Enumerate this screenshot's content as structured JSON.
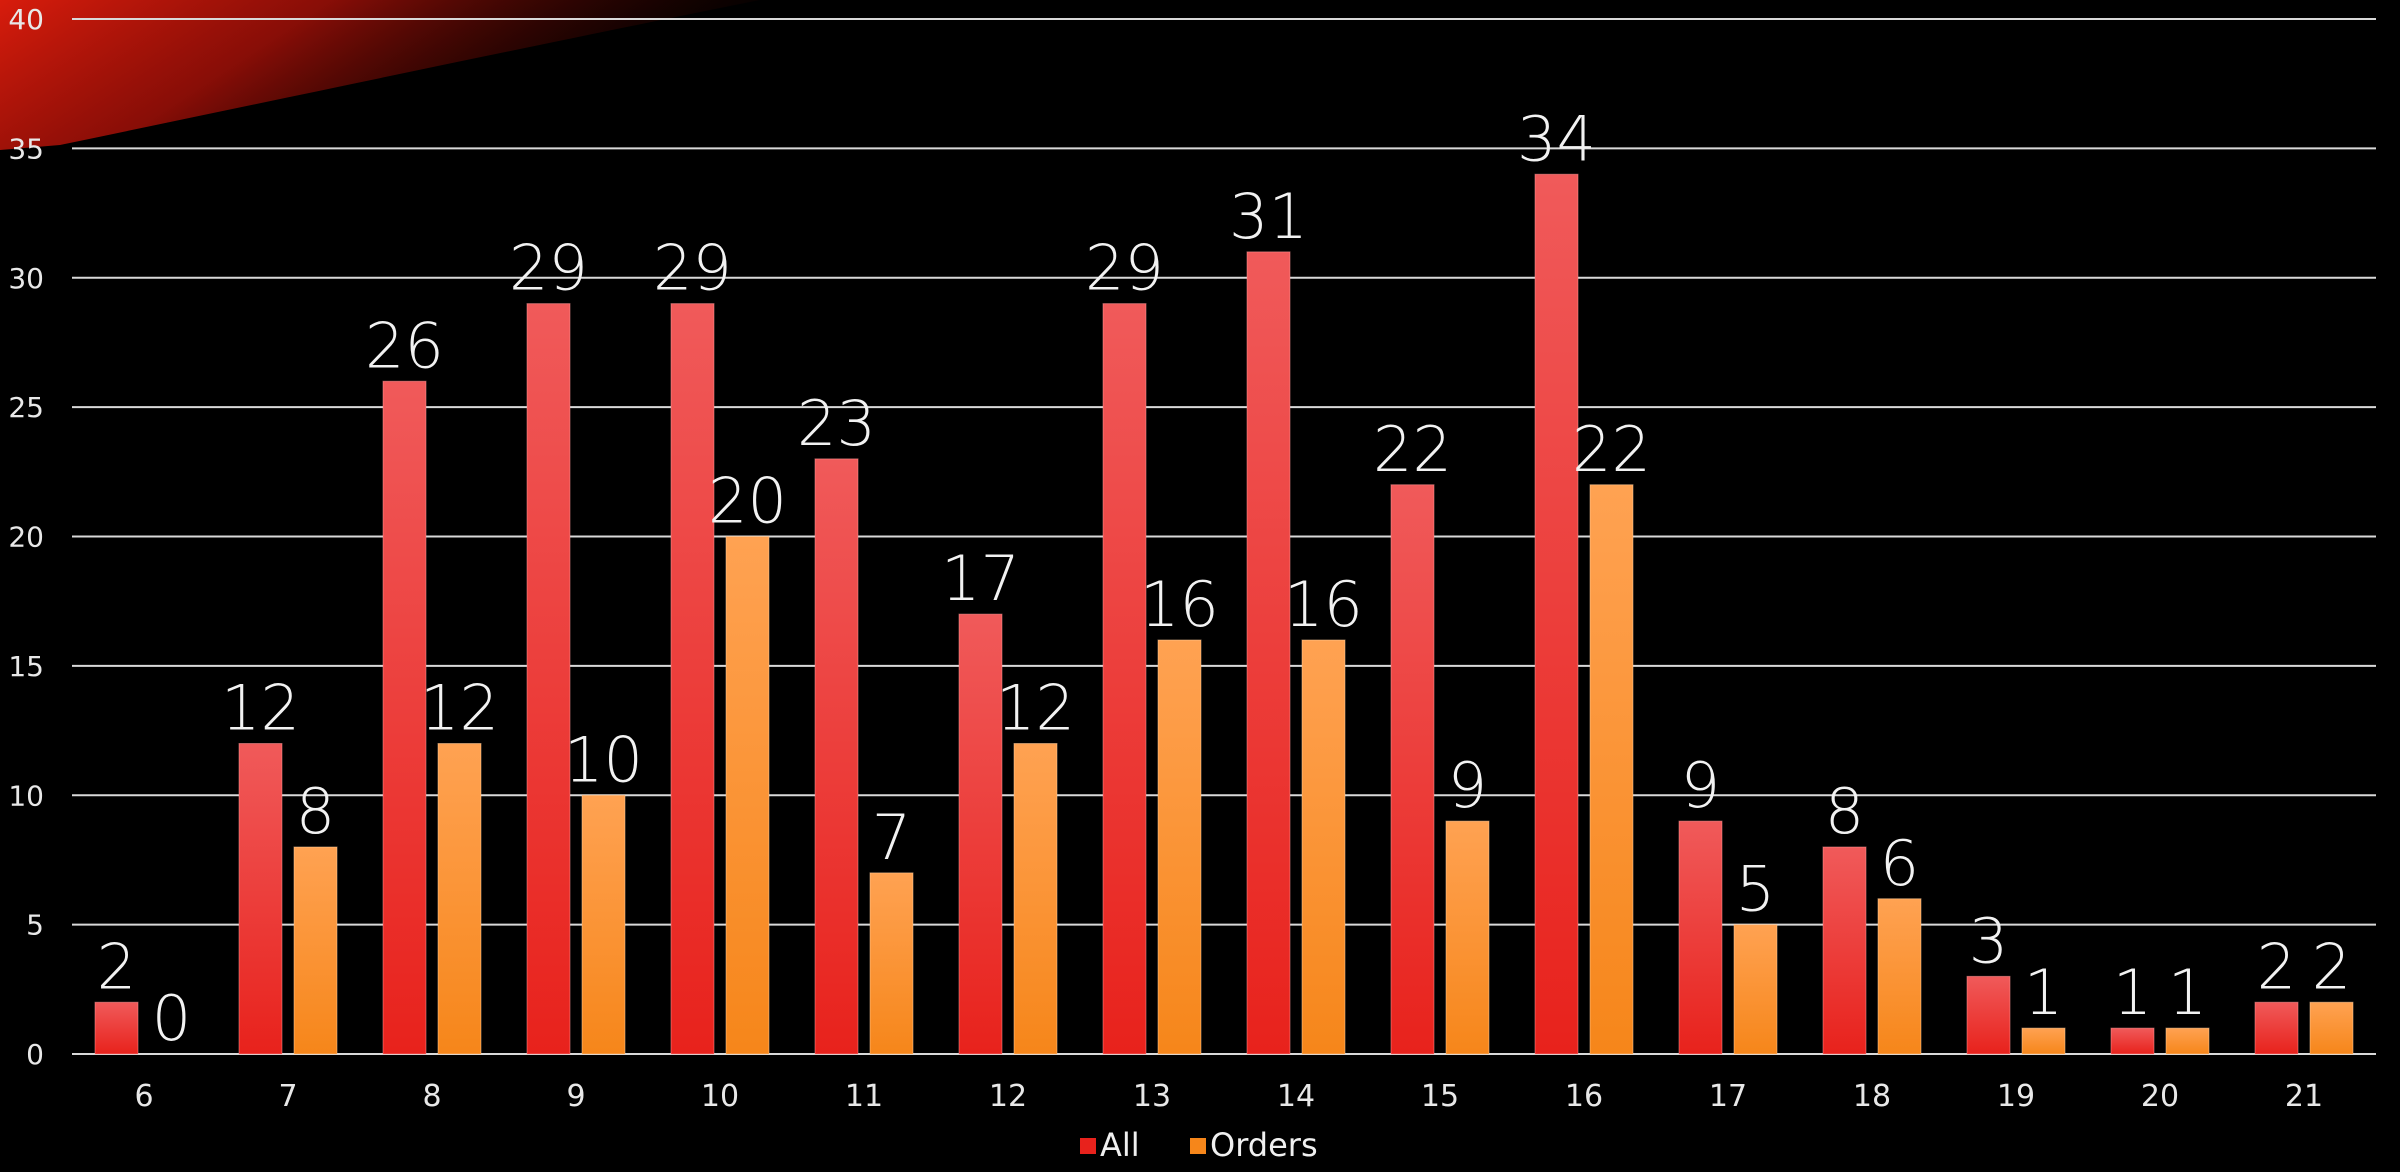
{
  "colors": {
    "background": "#000000",
    "grid": "#d9d9d9",
    "all_top": "#f05a5a",
    "all_bottom": "#e8221c",
    "orders_top": "#ffa252",
    "orders_bottom": "#f6861a",
    "swoosh": "#cc1a0a"
  },
  "chart_data": {
    "type": "bar",
    "categories": [
      "6",
      "7",
      "8",
      "9",
      "10",
      "11",
      "12",
      "13",
      "14",
      "15",
      "16",
      "17",
      "18",
      "19",
      "20",
      "21"
    ],
    "series": [
      {
        "name": "All",
        "values": [
          2,
          12,
          26,
          29,
          29,
          23,
          17,
          29,
          31,
          22,
          34,
          9,
          8,
          3,
          1,
          2
        ]
      },
      {
        "name": "Orders",
        "values": [
          0,
          8,
          12,
          10,
          20,
          7,
          12,
          16,
          16,
          9,
          22,
          5,
          6,
          1,
          1,
          2
        ]
      }
    ],
    "ylim": [
      0,
      40
    ],
    "yticks": [
      0,
      5,
      10,
      15,
      20,
      25,
      30,
      35,
      40
    ],
    "grid": true,
    "legend_position": "bottom-center",
    "data_labels": true
  }
}
